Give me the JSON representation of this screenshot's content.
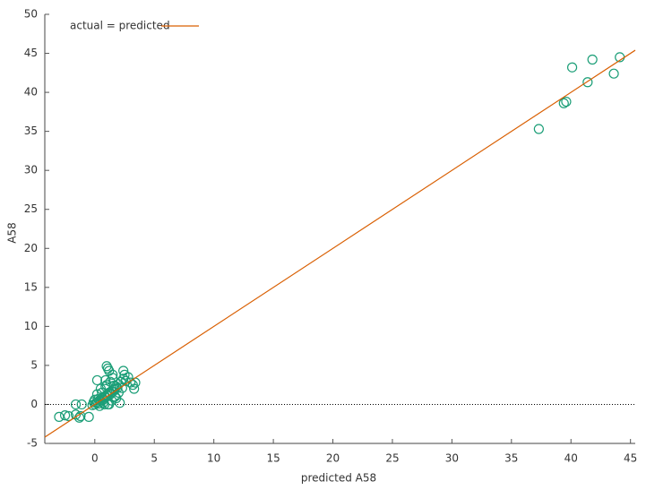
{
  "chart_data": {
    "type": "scatter",
    "x_label": "predicted A58",
    "y_label": "A58",
    "xlim": [
      -4.2,
      45.4
    ],
    "ylim": [
      -5,
      50
    ],
    "xticks": [
      0,
      5,
      10,
      15,
      20,
      25,
      30,
      35,
      40,
      45
    ],
    "yticks": [
      -5,
      0,
      5,
      10,
      15,
      20,
      25,
      30,
      35,
      40,
      45,
      50
    ],
    "legend": "top left",
    "zero_line": 0,
    "points": {
      "color": "#1b9e77",
      "x": [
        -0.2,
        0,
        0.1,
        0.2,
        0.3,
        0.4,
        0.5,
        0.6,
        0.7,
        0.8,
        0.9,
        1.0,
        1.1,
        1.2,
        1.3,
        1.4,
        1.5,
        1.6,
        1.7,
        1.8,
        1.9,
        2.0,
        2.2,
        2.4,
        2.6,
        2.8,
        3.0,
        3.3,
        3.4,
        1.0,
        1.1,
        1.2,
        0.9,
        1.0,
        1.5,
        1.8,
        2.4,
        2.5,
        0.2,
        0.5,
        0.8,
        1.1,
        1.4,
        1.7,
        2.0,
        0.3,
        0.6,
        0.9,
        1.2,
        1.5,
        0.0,
        -0.1,
        0.4,
        0.7,
        1.3,
        1.6,
        2.1,
        2.3,
        3.2,
        0.2,
        -3,
        -2.5,
        -2.2,
        -1.6,
        -1.3,
        -1.2,
        -1.6,
        -1.1,
        -0.5,
        37.3,
        39.4,
        39.6,
        40.1,
        41.4,
        41.8,
        43.6,
        44.1
      ],
      "y": [
        -0.1,
        0,
        0.2,
        0.3,
        0.1,
        0.5,
        0.4,
        0.8,
        0.6,
        1.0,
        0.9,
        1.2,
        1.1,
        1.5,
        1.3,
        1.7,
        1.6,
        1.9,
        2.0,
        2.3,
        2.1,
        2.6,
        2.9,
        3.3,
        3.0,
        3.5,
        2.8,
        2.0,
        2.8,
        4.9,
        4.6,
        4.3,
        3.1,
        2.5,
        3.8,
        0.8,
        4.3,
        3.8,
        1.3,
        2.0,
        0.0,
        0.0,
        0.5,
        1.0,
        1.5,
        0.7,
        1.5,
        2.3,
        0.0,
        3.4,
        0.6,
        0.3,
        -0.2,
        0.2,
        2.9,
        2.4,
        0.2,
        2.1,
        2.5,
        3.1,
        -1.6,
        -1.4,
        -1.5,
        0,
        -1.7,
        -1.5,
        -1.3,
        0,
        -1.6,
        35.3,
        38.6,
        38.8,
        43.2,
        41.3,
        44.2,
        42.4,
        44.5
      ]
    },
    "reference_line": {
      "name": "actual = predicted",
      "color": "#d95f02",
      "x": [
        -4.2,
        45.4
      ],
      "y": [
        -4.2,
        45.4
      ]
    }
  }
}
